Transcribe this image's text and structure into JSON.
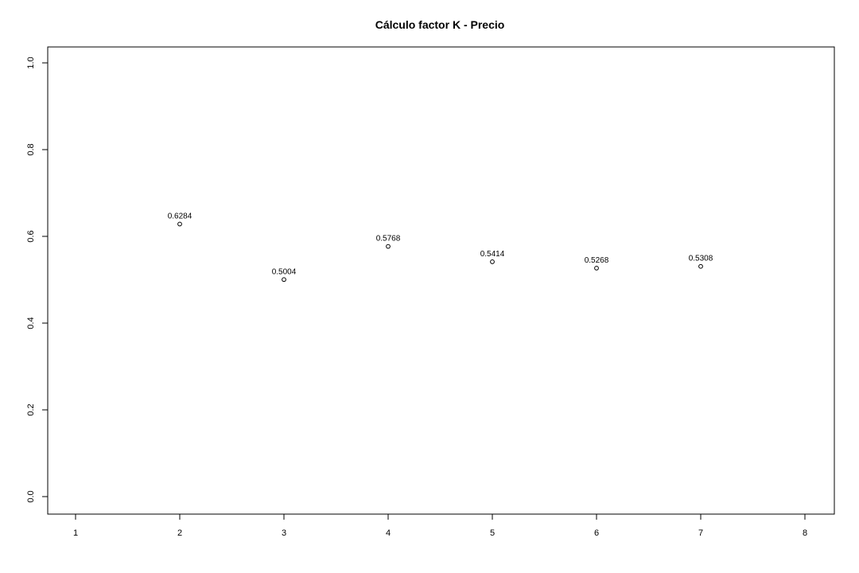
{
  "chart_data": {
    "type": "scatter",
    "title": "Cálculo factor K - Precio",
    "xlabel": "",
    "ylabel": "",
    "xlim": [
      1,
      8
    ],
    "ylim": [
      0,
      1
    ],
    "x_ticks": [
      "1",
      "2",
      "3",
      "4",
      "5",
      "6",
      "7",
      "8"
    ],
    "y_ticks": [
      "0.0",
      "0.2",
      "0.4",
      "0.6",
      "0.8",
      "1.0"
    ],
    "grid": false,
    "legend": "none",
    "series": [
      {
        "x": [
          2,
          3,
          4,
          5,
          6,
          7
        ],
        "y": [
          0.6284,
          0.5004,
          0.5768,
          0.5414,
          0.5268,
          0.5308
        ],
        "labels": [
          "0.6284",
          "0.5004",
          "0.5768",
          "0.5414",
          "0.5268",
          "0.5308"
        ]
      }
    ]
  }
}
